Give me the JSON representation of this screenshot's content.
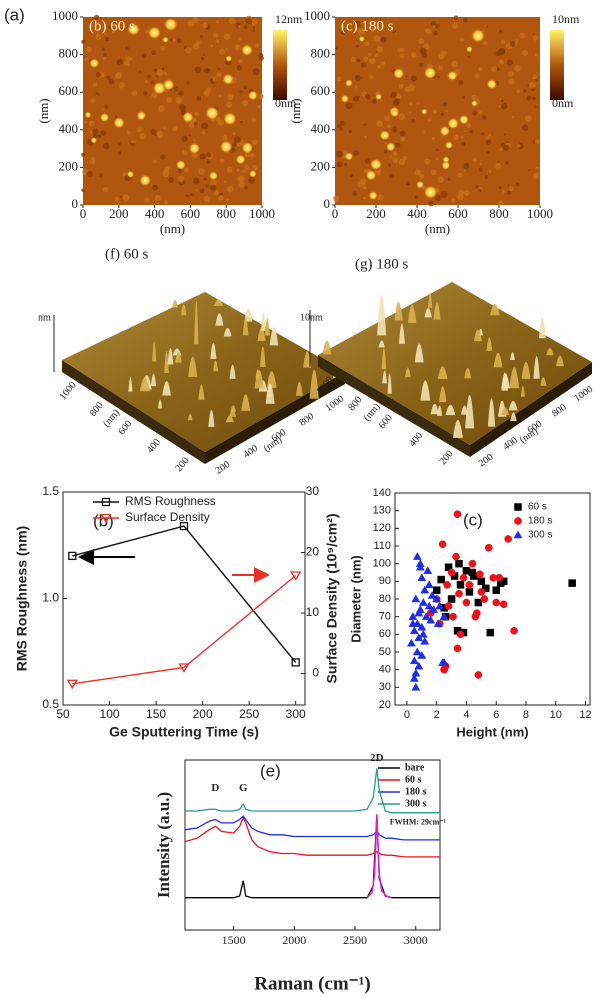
{
  "chart_data": [
    {
      "type": "afm",
      "panel": "(a)",
      "title": "(b) 60 s",
      "xlabel": "(nm)",
      "ylabel": "(nm)",
      "xlim": [
        0,
        1000
      ],
      "ylim": [
        0,
        1000
      ],
      "xticks": [
        0,
        200,
        400,
        600,
        800,
        1000
      ],
      "yticks": [
        0,
        200,
        400,
        600,
        800,
        1000
      ],
      "colorbar_labels": [
        "12nm",
        "0nm"
      ]
    },
    {
      "type": "afm",
      "title": "(c) 180 s",
      "xlabel": "(nm)",
      "ylabel": "(nm)",
      "xlim": [
        0,
        1000
      ],
      "ylim": [
        0,
        1000
      ],
      "xticks": [
        0,
        200,
        400,
        600,
        800,
        1000
      ],
      "yticks": [
        0,
        200,
        400,
        600,
        800,
        1000
      ],
      "colorbar_labels": [
        "10nm",
        "0nm"
      ]
    },
    {
      "type": "afm3d",
      "title": "(f) 60 s",
      "zlabel": "nm",
      "xlabel": "(nm)",
      "ylabel": "(nm)",
      "xticks": [
        200,
        400,
        600,
        800,
        1000
      ],
      "yticks": [
        200,
        400,
        600,
        800,
        1000
      ]
    },
    {
      "type": "afm3d",
      "title": "(g) 180 s",
      "zlabel": "10nm",
      "xlabel": "(nm)",
      "ylabel": "(nm)",
      "xticks": [
        200,
        400,
        600,
        800,
        1000
      ],
      "yticks": [
        200,
        400,
        600,
        800,
        1000
      ]
    },
    {
      "type": "line",
      "panel": "(b)",
      "xlabel": "Ge Sputtering Time (s)",
      "ylabel": "RMS Roughness (nm)",
      "y2label": "Surface Density (10⁹/cm²)",
      "x": [
        60,
        180,
        300
      ],
      "xlim": [
        50,
        310
      ],
      "xticks": [
        50,
        100,
        150,
        200,
        250,
        300
      ],
      "ylim": [
        0.5,
        1.5
      ],
      "yticks": [
        {
          "value": 0.5,
          "label": "0.5"
        },
        {
          "value": 1.0,
          "label": "1.0"
        },
        {
          "value": 1.5,
          "label": "1.5"
        }
      ],
      "y2lim": [
        -5.2,
        30
      ],
      "y2ticks": [
        0,
        10,
        20,
        30
      ],
      "legend": "upper-left",
      "series": [
        {
          "name": "RMS Roughness",
          "color": "#111111",
          "marker": "square",
          "values": [
            1.2,
            1.34,
            0.7
          ]
        },
        {
          "name": "Surface Density",
          "color": "#e8302a",
          "marker": "triangle-down",
          "axis": "y2",
          "values": [
            -1.7,
            1.0,
            16.2
          ]
        }
      ]
    },
    {
      "type": "scatter",
      "panel": "(c)",
      "xlabel": "Height (nm)",
      "ylabel": "Diameter (nm)",
      "xlim": [
        -0.8,
        12.3
      ],
      "xticks": [
        0,
        2,
        4,
        6,
        8,
        10,
        12
      ],
      "ylim": [
        20,
        140
      ],
      "yticks": [
        20,
        30,
        40,
        50,
        60,
        70,
        80,
        90,
        100,
        110,
        120,
        130,
        140
      ],
      "legend": "upper-right",
      "series": [
        {
          "name": "60 s",
          "color": "#000000",
          "marker": "square",
          "x": [
            2.0,
            2.3,
            2.5,
            2.8,
            3.0,
            3.2,
            3.4,
            3.6,
            3.8,
            4.0,
            4.2,
            4.5,
            4.8,
            5.0,
            5.3,
            5.6,
            6.0,
            6.3,
            6.5,
            2.6,
            3.5,
            4.4,
            11.1
          ],
          "values": [
            85,
            91,
            75,
            98,
            80,
            93,
            62,
            88,
            61,
            96,
            84,
            93,
            78,
            90,
            86,
            61,
            85,
            89,
            90,
            70,
            100,
            95,
            89
          ]
        },
        {
          "name": "180 s",
          "color": "#e8141c",
          "marker": "circle",
          "x": [
            1.6,
            2.0,
            2.2,
            2.4,
            2.5,
            2.7,
            2.8,
            3.0,
            3.1,
            3.3,
            3.4,
            3.5,
            3.6,
            3.8,
            4.0,
            4.2,
            4.4,
            4.6,
            4.8,
            4.9,
            5.0,
            5.2,
            5.5,
            5.8,
            6.0,
            6.2,
            6.5,
            6.8,
            7.2,
            3.4,
            2.6,
            4.7
          ],
          "values": [
            72,
            80,
            66,
            111,
            40,
            88,
            76,
            95,
            70,
            104,
            128,
            83,
            60,
            92,
            78,
            88,
            100,
            70,
            37,
            94,
            84,
            80,
            109,
            92,
            78,
            92,
            77,
            114,
            62,
            52,
            42,
            72
          ]
        },
        {
          "name": "300 s",
          "color": "#1f2ee0",
          "marker": "triangle",
          "x": [
            0.3,
            0.4,
            0.5,
            0.5,
            0.6,
            0.6,
            0.7,
            0.7,
            0.8,
            0.8,
            0.9,
            0.9,
            1.0,
            1.0,
            1.1,
            1.1,
            1.2,
            1.3,
            1.4,
            1.5,
            1.6,
            1.7,
            1.8,
            2.0,
            2.2,
            2.4,
            2.5,
            0.5,
            0.6,
            0.7,
            0.8,
            1.0,
            1.2,
            0.4,
            0.9,
            1.5,
            2.1,
            2.5
          ],
          "values": [
            55,
            70,
            45,
            62,
            38,
            80,
            50,
            66,
            72,
            58,
            100,
            74,
            64,
            92,
            78,
            60,
            85,
            70,
            96,
            76,
            68,
            82,
            74,
            80,
            76,
            44,
            70,
            35,
            30,
            104,
            42,
            48,
            56,
            66,
            98,
            88,
            66,
            44
          ]
        }
      ]
    },
    {
      "type": "spectrum",
      "panel": "(e)",
      "xlabel": "Raman (cm⁻¹)",
      "ylabel": "Intensity (a.u.)",
      "xlim": [
        1100,
        3200
      ],
      "xticks": [
        1500,
        2000,
        2500,
        3000
      ],
      "ylim": [
        0,
        10
      ],
      "legend": "upper-right",
      "annotations": [
        "D",
        "G",
        "2D",
        "FWHM: 29cm⁻¹"
      ],
      "x": [
        1100,
        1200,
        1300,
        1350,
        1400,
        1500,
        1550,
        1580,
        1600,
        1650,
        1700,
        1800,
        1900,
        2000,
        2100,
        2200,
        2300,
        2400,
        2500,
        2600,
        2650,
        2680,
        2700,
        2750,
        2800,
        2900,
        3000,
        3100,
        3200
      ],
      "series": [
        {
          "name": "bare",
          "color": "#000000",
          "values": [
            1.9,
            1.9,
            1.9,
            1.9,
            1.9,
            1.9,
            2.0,
            2.9,
            2.0,
            1.9,
            1.9,
            1.9,
            1.9,
            1.9,
            1.9,
            1.9,
            1.9,
            1.9,
            1.9,
            1.9,
            2.6,
            6.8,
            3.0,
            2.0,
            1.9,
            1.9,
            1.9,
            1.9,
            1.9
          ]
        },
        {
          "name": "60 s",
          "color": "#e8141c",
          "values": [
            5.2,
            5.4,
            5.9,
            6.1,
            5.8,
            5.7,
            6.1,
            6.6,
            6.3,
            5.3,
            4.9,
            4.6,
            4.5,
            4.5,
            4.4,
            4.4,
            4.4,
            4.4,
            4.4,
            4.4,
            4.5,
            4.6,
            4.5,
            4.4,
            4.4,
            4.3,
            4.3,
            4.3,
            4.3
          ]
        },
        {
          "name": "180 s",
          "color": "#1f2ee0",
          "values": [
            5.9,
            6.0,
            6.4,
            6.5,
            6.3,
            6.3,
            6.5,
            6.7,
            6.5,
            6.0,
            5.8,
            5.6,
            5.6,
            5.5,
            5.5,
            5.5,
            5.5,
            5.5,
            5.5,
            5.5,
            5.6,
            5.8,
            5.6,
            5.4,
            5.4,
            5.3,
            5.3,
            5.3,
            5.3
          ]
        },
        {
          "name": "300 s",
          "color": "#2a9a8e",
          "values": [
            7.0,
            7.0,
            7.1,
            7.1,
            7.0,
            7.0,
            7.1,
            7.4,
            7.1,
            7.0,
            7.0,
            7.0,
            7.0,
            7.0,
            7.0,
            7.0,
            7.0,
            7.0,
            7.0,
            7.1,
            7.8,
            9.5,
            8.2,
            7.0,
            6.9,
            6.9,
            6.9,
            6.9,
            6.9
          ]
        }
      ],
      "fit": {
        "color": "#e020d0",
        "x": [
          2600,
          2640,
          2660,
          2670,
          2680,
          2690,
          2700,
          2720,
          2760,
          2800
        ],
        "values": [
          1.9,
          2.2,
          3.2,
          4.8,
          6.8,
          4.9,
          3.3,
          2.3,
          2.0,
          1.9
        ]
      }
    }
  ]
}
